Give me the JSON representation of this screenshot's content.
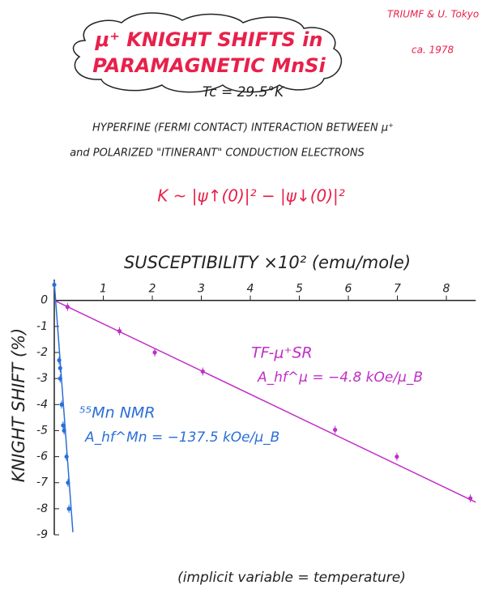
{
  "header": {
    "title_line1": "μ⁺ KNIGHT SHIFTS in",
    "title_line2": "PARAMAGNETIC MnSi",
    "credit": "TRIUMF & U. Tokyo",
    "date": "ca. 1978",
    "tc": "Tc = 29.5°K",
    "line1": "HYPERFINE (FERMI CONTACT) INTERACTION BETWEEN μ⁺",
    "line2": "and POLARIZED \"ITINERANT\" CONDUCTION ELECTRONS",
    "formula": "K ~ |ψ↑(0)|² − |ψ↓(0)|²"
  },
  "chart_data": {
    "type": "scatter",
    "x_label": "SUSCEPTIBILITY ×10² (emu/mole)",
    "y_label": "KNIGHT SHIFT (%)",
    "footnote": "(implicit variable = temperature)",
    "xlim": [
      0,
      8.6
    ],
    "xticks": [
      1,
      2,
      3,
      4,
      5,
      6,
      7,
      8
    ],
    "ylim": [
      -9,
      0.8
    ],
    "yticks": [
      0,
      -1,
      -2,
      -3,
      -4,
      -5,
      -6,
      -7,
      -8,
      -9
    ],
    "series": [
      {
        "name": "TF-μ⁺SR",
        "color": "#c02ec8",
        "x": [
          0.27,
          1.33,
          2.05,
          3.03,
          5.73,
          6.99,
          8.49
        ],
        "values": [
          -0.25,
          -1.18,
          -2.0,
          -2.73,
          -4.97,
          -6.0,
          -7.6
        ],
        "fit_x": [
          0,
          8.6
        ],
        "fit_values": [
          0,
          -7.75
        ],
        "annotation": "A_hf^μ = −4.8 kOe/μ_B"
      },
      {
        "name": "⁵⁵Mn NMR",
        "color": "#2a6fd6",
        "x": [
          0,
          0.1,
          0.12,
          0.12,
          0.15,
          0.18,
          0.2,
          0.25,
          0.28,
          0.3
        ],
        "values": [
          0.6,
          -2.3,
          -2.6,
          -3.0,
          -4.0,
          -4.8,
          -5.0,
          -6.0,
          -7.0,
          -8.0
        ],
        "fit_x": [
          0,
          0.38
        ],
        "fit_values": [
          0.7,
          -8.9
        ],
        "annotation": "A_hf^Mn = −137.5 kOe/μ_B"
      }
    ]
  }
}
